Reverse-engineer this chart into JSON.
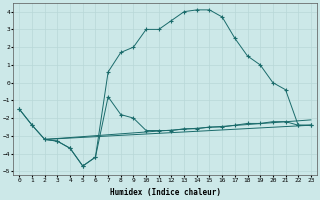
{
  "xlabel": "Humidex (Indice chaleur)",
  "background_color": "#cce8e8",
  "grid_color": "#b8d8d8",
  "line_color": "#1a6b6b",
  "xlim": [
    -0.5,
    23.5
  ],
  "ylim": [
    -5.2,
    4.5
  ],
  "xticks": [
    0,
    1,
    2,
    3,
    4,
    5,
    6,
    7,
    8,
    9,
    10,
    11,
    12,
    13,
    14,
    15,
    16,
    17,
    18,
    19,
    20,
    21,
    22,
    23
  ],
  "yticks": [
    -5,
    -4,
    -3,
    -2,
    -1,
    0,
    1,
    2,
    3,
    4
  ],
  "line1_x": [
    0,
    1,
    2,
    3,
    4,
    5,
    6,
    7,
    8,
    9,
    10,
    11,
    12,
    13,
    14,
    15,
    16,
    17,
    18,
    19,
    20,
    21,
    22,
    23
  ],
  "line1_y": [
    -1.5,
    -2.4,
    -3.2,
    -3.3,
    -3.7,
    -4.7,
    -4.2,
    0.6,
    1.7,
    2.0,
    3.0,
    3.0,
    3.5,
    4.0,
    4.1,
    4.1,
    3.7,
    2.5,
    1.5,
    1.0,
    0.0,
    -0.4,
    -2.4,
    -2.4
  ],
  "line2_x": [
    0,
    1,
    2,
    3,
    4,
    5,
    6,
    7,
    8,
    9,
    10,
    11,
    12,
    13,
    14,
    15,
    16,
    17,
    18,
    19,
    20,
    21,
    22,
    23
  ],
  "line2_y": [
    -1.5,
    -2.4,
    -3.2,
    -3.3,
    -3.7,
    -4.7,
    -4.2,
    -0.8,
    -1.8,
    -2.0,
    -2.7,
    -2.7,
    -2.7,
    -2.6,
    -2.6,
    -2.5,
    -2.5,
    -2.4,
    -2.3,
    -2.3,
    -2.2,
    -2.2,
    -2.4,
    -2.4
  ],
  "line3_x": [
    2,
    23
  ],
  "line3_y": [
    -3.2,
    -2.4
  ],
  "line4_x": [
    2,
    23
  ],
  "line4_y": [
    -3.2,
    -2.1
  ]
}
